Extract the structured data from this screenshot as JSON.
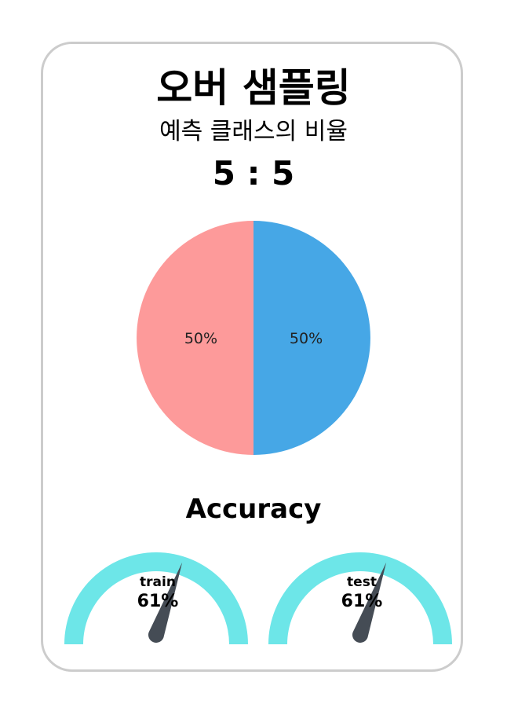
{
  "title": "오버 샘플링",
  "subtitle": "예측 클래스의 비율",
  "ratio_text": "5 : 5",
  "accuracy_title": "Accuracy",
  "colors": {
    "slice_left": "#fd9a9a",
    "slice_right": "#46a7e6",
    "gauge": "#6de6e8",
    "needle": "#454c55",
    "border": "#cccccc"
  },
  "chart_data": [
    {
      "type": "pie",
      "values": [
        50,
        50
      ],
      "labels": [
        "50%",
        "50%"
      ],
      "colors": [
        "#46a7e6",
        "#fd9a9a"
      ]
    },
    {
      "type": "gauge",
      "gauges": [
        {
          "label": "train",
          "value_text": "61%",
          "value": 61
        },
        {
          "label": "test",
          "value_text": "61%",
          "value": 61
        }
      ],
      "range": [
        0,
        100
      ]
    }
  ]
}
